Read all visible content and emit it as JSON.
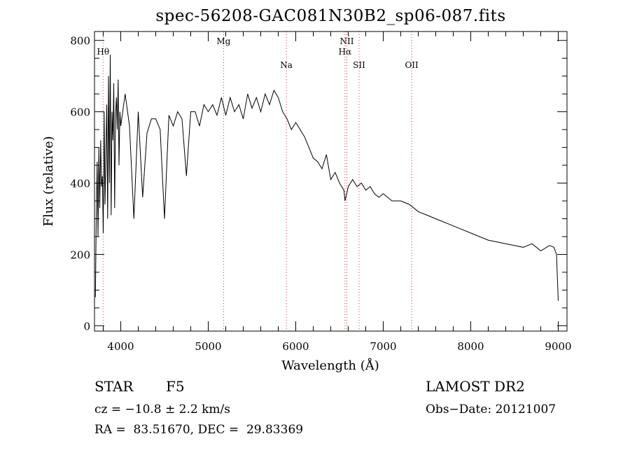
{
  "title": "spec-56208-GAC081N30B2_sp06-087.fits",
  "chart_data": {
    "type": "line",
    "xlabel": "Wavelength (Å)",
    "ylabel": "Flux (relative)",
    "xlim": [
      3700,
      9100
    ],
    "ylim": [
      -15,
      825
    ],
    "xticks": [
      4000,
      5000,
      6000,
      7000,
      8000,
      9000
    ],
    "yticks": [
      0,
      200,
      400,
      600,
      800
    ],
    "grid": false,
    "line_color": "#000000",
    "marker_color": "#cc3333",
    "series": [
      {
        "x": [
          3710,
          3720,
          3730,
          3740,
          3750,
          3760,
          3770,
          3780,
          3790,
          3800,
          3810,
          3820,
          3830,
          3840,
          3850,
          3860,
          3870,
          3880,
          3890,
          3900,
          3910,
          3920,
          3930,
          3940,
          3950,
          3960,
          3970,
          3980,
          3990,
          4000,
          4050,
          4100,
          4150,
          4200,
          4250,
          4300,
          4350,
          4400,
          4450,
          4500,
          4550,
          4600,
          4650,
          4700,
          4750,
          4800,
          4850,
          4900,
          4950,
          5000,
          5050,
          5100,
          5150,
          5200,
          5250,
          5300,
          5350,
          5400,
          5450,
          5500,
          5550,
          5600,
          5650,
          5700,
          5750,
          5800,
          5850,
          5900,
          5950,
          6000,
          6050,
          6100,
          6150,
          6200,
          6250,
          6300,
          6350,
          6400,
          6450,
          6500,
          6550,
          6563,
          6600,
          6650,
          6700,
          6750,
          6800,
          6850,
          6900,
          6950,
          7000,
          7100,
          7200,
          7300,
          7400,
          7500,
          7600,
          7700,
          7800,
          7900,
          8000,
          8100,
          8200,
          8300,
          8400,
          8500,
          8600,
          8700,
          8800,
          8900,
          8950,
          8980,
          9000
        ],
        "y": [
          80,
          300,
          460,
          250,
          500,
          330,
          520,
          390,
          420,
          260,
          600,
          340,
          480,
          620,
          300,
          700,
          400,
          760,
          310,
          600,
          520,
          680,
          330,
          590,
          640,
          550,
          690,
          450,
          600,
          560,
          650,
          560,
          300,
          600,
          360,
          540,
          580,
          580,
          550,
          300,
          590,
          560,
          600,
          580,
          420,
          600,
          600,
          560,
          620,
          600,
          620,
          590,
          640,
          590,
          640,
          600,
          620,
          580,
          650,
          610,
          640,
          600,
          650,
          620,
          660,
          640,
          600,
          580,
          550,
          570,
          550,
          530,
          500,
          470,
          460,
          440,
          480,
          410,
          430,
          400,
          380,
          350,
          390,
          410,
          390,
          400,
          380,
          390,
          370,
          360,
          370,
          350,
          350,
          340,
          320,
          310,
          300,
          290,
          280,
          270,
          260,
          250,
          240,
          235,
          230,
          225,
          220,
          230,
          210,
          225,
          220,
          200,
          70
        ]
      }
    ],
    "line_markers": [
      {
        "label": "Hθ",
        "x": 3798
      },
      {
        "label": "Mg",
        "x": 5175
      },
      {
        "label": "Na",
        "x": 5893
      },
      {
        "label": "NII",
        "x": 6584
      },
      {
        "label": "Hα",
        "x": 6563
      },
      {
        "label": "SII",
        "x": 6724
      },
      {
        "label": "OII",
        "x": 7325
      }
    ]
  },
  "info": {
    "object_class": "STAR",
    "subclass": "F5",
    "survey": "LAMOST DR2",
    "cz": "cz = −10.8 ± 2.2 km/s",
    "obs_date": "Obs−Date: 20121007",
    "radec": "RA =  83.51670, DEC =  29.83369"
  }
}
